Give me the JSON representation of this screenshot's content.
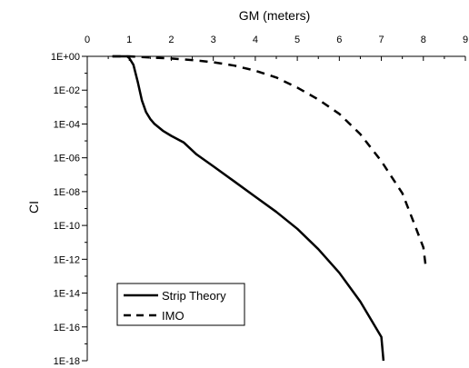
{
  "chart_data": {
    "type": "line",
    "xlabel": "GM (meters)",
    "ylabel": "CI",
    "xlim": [
      0,
      9
    ],
    "ylim_log10": [
      -18,
      0
    ],
    "y_scale": "log",
    "x_axis_position": "top",
    "grid": false,
    "legend_position": "bottom-left",
    "x_ticks": [
      "0",
      "1",
      "2",
      "3",
      "4",
      "5",
      "6",
      "7",
      "8",
      "9"
    ],
    "y_ticks": [
      "1E+00",
      "1E-02",
      "1E-04",
      "1E-06",
      "1E-08",
      "1E-10",
      "1E-12",
      "1E-14",
      "1E-16",
      "1E-18"
    ],
    "series": [
      {
        "name": "Strip Theory",
        "style": "solid",
        "color": "#000000",
        "x": [
          0.6,
          0.95,
          1.0,
          1.1,
          1.2,
          1.3,
          1.4,
          1.5,
          1.6,
          1.8,
          2.0,
          2.3,
          2.6,
          3.0,
          3.5,
          4.0,
          4.5,
          5.0,
          5.5,
          6.0,
          6.5,
          7.0,
          7.05
        ],
        "log10_y": [
          0,
          0,
          -0.1,
          -0.5,
          -1.5,
          -2.6,
          -3.3,
          -3.7,
          -4.0,
          -4.4,
          -4.7,
          -5.1,
          -5.8,
          -6.5,
          -7.4,
          -8.3,
          -9.2,
          -10.2,
          -11.4,
          -12.8,
          -14.5,
          -16.6,
          -18
        ]
      },
      {
        "name": "IMO",
        "style": "dashed",
        "color": "#000000",
        "x": [
          0.6,
          1.0,
          1.5,
          2.0,
          2.5,
          3.0,
          3.5,
          4.0,
          4.5,
          5.0,
          5.5,
          6.0,
          6.5,
          7.0,
          7.5,
          7.8,
          8.0,
          8.05
        ],
        "log10_y": [
          0,
          0,
          -0.07,
          -0.13,
          -0.22,
          -0.35,
          -0.55,
          -0.85,
          -1.25,
          -1.85,
          -2.55,
          -3.4,
          -4.6,
          -6.2,
          -8.1,
          -10.0,
          -11.3,
          -12.3
        ]
      }
    ]
  }
}
